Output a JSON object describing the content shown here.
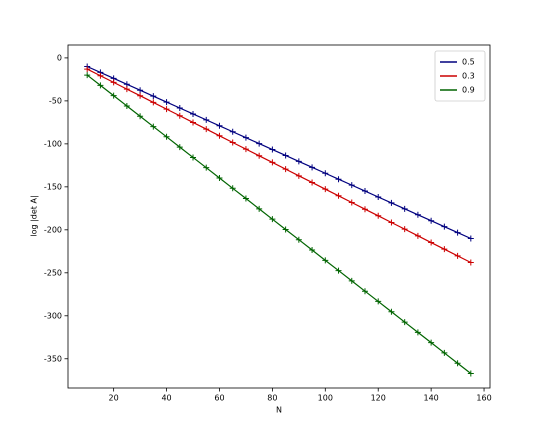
{
  "chart_data": {
    "type": "line",
    "x_label": "N",
    "y_label": "log |det A|",
    "x": [
      10,
      15,
      20,
      25,
      30,
      35,
      40,
      45,
      50,
      55,
      60,
      65,
      70,
      75,
      80,
      85,
      90,
      95,
      100,
      105,
      110,
      115,
      120,
      125,
      130,
      135,
      140,
      145,
      150,
      155
    ],
    "series": [
      {
        "name": "0.5",
        "color": "#00007f",
        "values": [
          -10,
          -16.9,
          -23.8,
          -30.7,
          -37.6,
          -44.5,
          -51.4,
          -58.3,
          -65.2,
          -72.1,
          -79,
          -85.9,
          -92.8,
          -99.7,
          -106.6,
          -113.5,
          -120.4,
          -127.3,
          -134.2,
          -141.1,
          -148,
          -154.9,
          -161.8,
          -168.7,
          -175.6,
          -182.5,
          -189.4,
          -196.3,
          -203.2,
          -210.1
        ]
      },
      {
        "name": "0.3",
        "color": "#cc0000",
        "values": [
          -13,
          -20.8,
          -28.5,
          -36.3,
          -44,
          -51.8,
          -59.6,
          -67.3,
          -75.1,
          -82.8,
          -90.6,
          -98.4,
          -106.1,
          -113.9,
          -121.6,
          -129.4,
          -137.2,
          -144.9,
          -152.7,
          -160.4,
          -168.2,
          -176,
          -183.7,
          -191.5,
          -199.2,
          -207,
          -214.8,
          -222.5,
          -230.3,
          -238
        ]
      },
      {
        "name": "0.9",
        "color": "#006400",
        "values": [
          -20,
          -32,
          -43.9,
          -55.9,
          -67.9,
          -79.9,
          -91.8,
          -103.8,
          -115.8,
          -127.7,
          -139.7,
          -151.7,
          -163.6,
          -175.6,
          -187.6,
          -199.6,
          -211.5,
          -223.5,
          -235.5,
          -247.4,
          -259.4,
          -271.4,
          -283.3,
          -295.3,
          -307.3,
          -319.3,
          -331.2,
          -343.2,
          -355.2,
          -367.1
        ]
      }
    ],
    "xlim": [
      2.75,
      162.25
    ],
    "xticks": [
      20,
      40,
      60,
      80,
      100,
      120,
      140,
      160
    ],
    "ylim": [
      -384,
      15
    ],
    "yticks": [
      0,
      -50,
      -100,
      -150,
      -200,
      -250,
      -300,
      -350
    ],
    "legend": "upper right"
  }
}
